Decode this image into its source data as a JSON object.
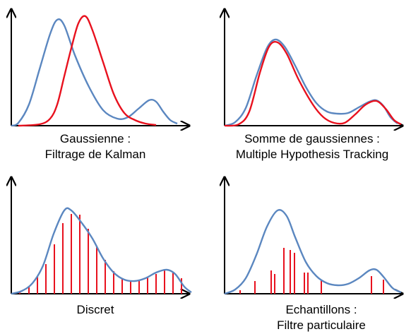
{
  "panels": [
    {
      "id": "gaussian",
      "caption": [
        "Gaussienne :",
        "Filtrage de Kalman"
      ],
      "blue_curve": [
        [
          0,
          0
        ],
        [
          10,
          4
        ],
        [
          25,
          30
        ],
        [
          40,
          80
        ],
        [
          55,
          130
        ],
        [
          65,
          150
        ],
        [
          75,
          142
        ],
        [
          90,
          100
        ],
        [
          110,
          55
        ],
        [
          130,
          22
        ],
        [
          150,
          10
        ],
        [
          165,
          12
        ],
        [
          180,
          24
        ],
        [
          195,
          36
        ],
        [
          205,
          34
        ],
        [
          215,
          20
        ],
        [
          225,
          8
        ],
        [
          235,
          3
        ]
      ],
      "red_curve": [
        [
          10,
          0
        ],
        [
          40,
          2
        ],
        [
          55,
          10
        ],
        [
          65,
          30
        ],
        [
          75,
          70
        ],
        [
          85,
          110
        ],
        [
          95,
          145
        ],
        [
          105,
          155
        ],
        [
          115,
          135
        ],
        [
          130,
          90
        ],
        [
          145,
          45
        ],
        [
          160,
          18
        ],
        [
          175,
          8
        ],
        [
          190,
          3
        ],
        [
          205,
          1
        ]
      ],
      "red_spikes": []
    },
    {
      "id": "mixture",
      "caption": [
        "Somme de gaussiennes :",
        "Multiple Hypothesis Tracking"
      ],
      "blue_curve": [
        [
          0,
          0
        ],
        [
          15,
          5
        ],
        [
          30,
          25
        ],
        [
          45,
          70
        ],
        [
          60,
          110
        ],
        [
          72,
          122
        ],
        [
          85,
          112
        ],
        [
          100,
          85
        ],
        [
          115,
          55
        ],
        [
          130,
          32
        ],
        [
          145,
          20
        ],
        [
          160,
          17
        ],
        [
          175,
          18
        ],
        [
          190,
          26
        ],
        [
          205,
          34
        ],
        [
          215,
          36
        ],
        [
          225,
          28
        ],
        [
          235,
          12
        ],
        [
          245,
          3
        ]
      ],
      "red_curve": [
        [
          0,
          0
        ],
        [
          20,
          2
        ],
        [
          35,
          20
        ],
        [
          50,
          75
        ],
        [
          63,
          112
        ],
        [
          75,
          118
        ],
        [
          88,
          102
        ],
        [
          105,
          65
        ],
        [
          125,
          30
        ],
        [
          140,
          12
        ],
        [
          155,
          4
        ],
        [
          170,
          4
        ],
        [
          185,
          16
        ],
        [
          200,
          30
        ],
        [
          215,
          35
        ],
        [
          228,
          24
        ],
        [
          240,
          8
        ],
        [
          250,
          2
        ]
      ],
      "red_spikes": []
    },
    {
      "id": "discrete",
      "caption": [
        "Discret"
      ],
      "blue_curve": [
        [
          0,
          0
        ],
        [
          15,
          4
        ],
        [
          30,
          15
        ],
        [
          45,
          40
        ],
        [
          60,
          85
        ],
        [
          75,
          118
        ],
        [
          85,
          118
        ],
        [
          100,
          100
        ],
        [
          115,
          78
        ],
        [
          130,
          50
        ],
        [
          145,
          30
        ],
        [
          160,
          20
        ],
        [
          175,
          18
        ],
        [
          190,
          22
        ],
        [
          205,
          30
        ],
        [
          220,
          34
        ],
        [
          232,
          28
        ],
        [
          245,
          10
        ],
        [
          255,
          2
        ]
      ],
      "red_curve": [],
      "red_spikes": [
        [
          12,
          3
        ],
        [
          25,
          10
        ],
        [
          37,
          25
        ],
        [
          49,
          42
        ],
        [
          61,
          70
        ],
        [
          73,
          100
        ],
        [
          85,
          113
        ],
        [
          97,
          112
        ],
        [
          109,
          92
        ],
        [
          121,
          68
        ],
        [
          133,
          48
        ],
        [
          145,
          32
        ],
        [
          157,
          22
        ],
        [
          169,
          18
        ],
        [
          181,
          19
        ],
        [
          193,
          23
        ],
        [
          205,
          28
        ],
        [
          217,
          33
        ],
        [
          229,
          31
        ],
        [
          241,
          22
        ]
      ]
    },
    {
      "id": "particles",
      "caption": [
        "Echantillons :",
        "Filtre particulaire"
      ],
      "blue_curve": [
        [
          0,
          0
        ],
        [
          15,
          6
        ],
        [
          30,
          22
        ],
        [
          45,
          55
        ],
        [
          60,
          95
        ],
        [
          75,
          118
        ],
        [
          88,
          110
        ],
        [
          100,
          80
        ],
        [
          115,
          45
        ],
        [
          130,
          25
        ],
        [
          145,
          15
        ],
        [
          160,
          12
        ],
        [
          175,
          14
        ],
        [
          190,
          22
        ],
        [
          205,
          33
        ],
        [
          215,
          34
        ],
        [
          225,
          24
        ],
        [
          238,
          8
        ],
        [
          250,
          2
        ]
      ],
      "red_curve": [],
      "red_spikes": [
        [
          22,
          5
        ],
        [
          43,
          18
        ],
        [
          66,
          33
        ],
        [
          71,
          28
        ],
        [
          84,
          65
        ],
        [
          93,
          62
        ],
        [
          99,
          58
        ],
        [
          113,
          30
        ],
        [
          118,
          30
        ],
        [
          137,
          20
        ],
        [
          208,
          25
        ],
        [
          225,
          20
        ]
      ]
    }
  ],
  "colors": {
    "blue": "#5b87c0",
    "red": "#e8111e",
    "axis": "#000000"
  },
  "axis_arrows": "x-right, y-up"
}
